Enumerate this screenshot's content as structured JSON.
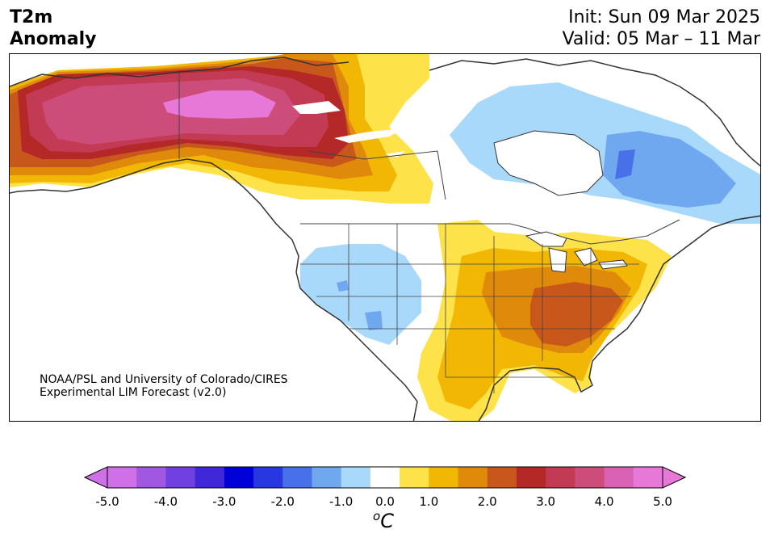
{
  "header": {
    "title_line1": "T2m",
    "title_line2": "Anomaly",
    "init_label": "Init: Sun 09 Mar 2025",
    "valid_label": "Valid: 05 Mar – 11 Mar"
  },
  "credit": {
    "line1": "NOAA/PSL and University of Colorado/CIRES",
    "line2": "Experimental LIM Forecast (v2.0)"
  },
  "colorbar": {
    "units_symbol": "o",
    "units_letter": "C",
    "tick_labels": [
      "-5.0",
      "-4.0",
      "-3.0",
      "-2.0",
      "-1.0",
      "0.0",
      "1.0",
      "2.0",
      "3.0",
      "4.0",
      "5.0"
    ],
    "levels": [
      -5.0,
      -4.5,
      -4.0,
      -3.5,
      -3.0,
      -2.5,
      -2.0,
      -1.5,
      -1.0,
      -0.5,
      0.5,
      1.0,
      1.5,
      2.0,
      2.5,
      3.0,
      3.5,
      4.0,
      4.5,
      5.0
    ],
    "colors": [
      "#d070e8",
      "#a058e0",
      "#7040e0",
      "#4028d8",
      "#0000d8",
      "#2838e0",
      "#4870e8",
      "#70a8f0",
      "#a8d8fa",
      "#ffffff",
      "#fde24a",
      "#f2b705",
      "#e08a0c",
      "#c8571b",
      "#b42828",
      "#c33a55",
      "#cc4c7a",
      "#da62b4",
      "#e878d8"
    ],
    "under_color": "#d070e8",
    "over_color": "#e878d8"
  },
  "map": {
    "region": "North America",
    "colors": {
      "ocean": "#ffffff",
      "pink": "#cc4c7a",
      "magenta": "#e878d8",
      "crimson": "#b42828",
      "rose": "#c33a55",
      "rust": "#c8571b",
      "dark_orange": "#e08a0c",
      "orange": "#f2b705",
      "yellow": "#fde24a",
      "light_blue": "#a8d8fa",
      "mid_blue": "#70a8f0",
      "blue": "#4870e8",
      "coast": "#333333",
      "border": "#444444"
    }
  }
}
